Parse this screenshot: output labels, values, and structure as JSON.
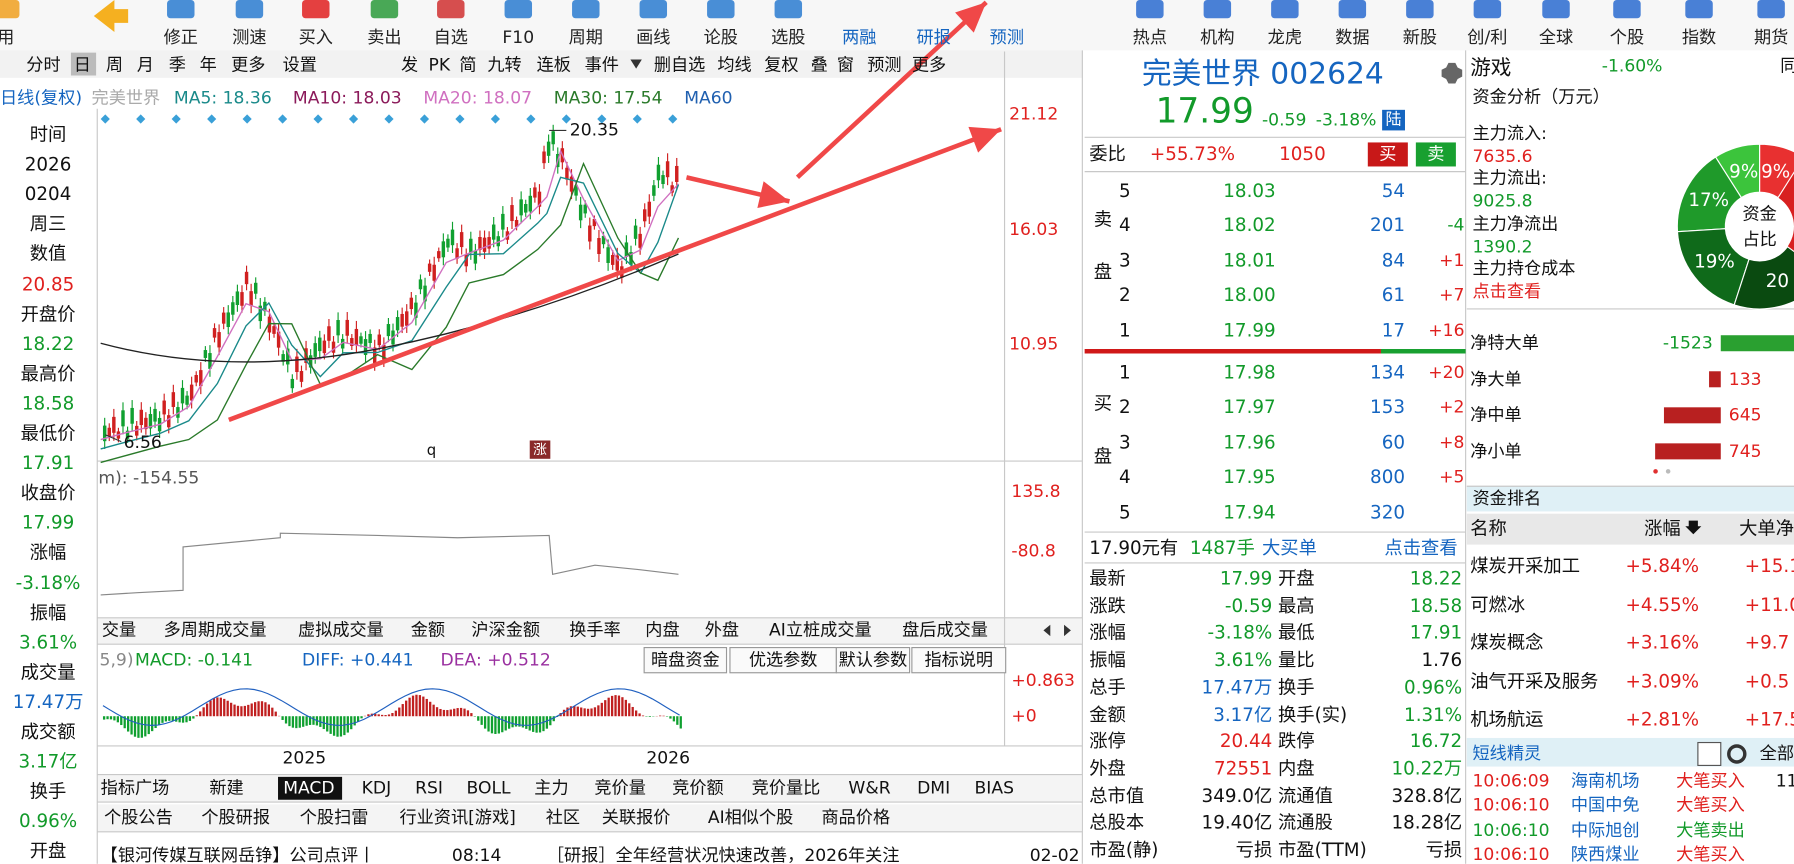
{
  "toolbar": [
    "用",
    "修正",
    "测速",
    "买入",
    "卖出",
    "自选",
    "F10",
    "周期",
    "画线",
    "论股",
    "选股",
    "两融",
    "研报",
    "预测",
    "热点",
    "机构",
    "龙虎",
    "数据",
    "新股",
    "创/利",
    "全球",
    "个股",
    "指数",
    "期货"
  ],
  "period_bar": [
    "分时",
    "日",
    "周",
    "月",
    "季",
    "年",
    "更多",
    "设置",
    "发",
    "PK",
    "简",
    "九转",
    "连板",
    "事件",
    "删自选",
    "均线",
    "复权",
    "叠",
    "窗",
    "预测",
    "更多"
  ],
  "ma_legend": [
    "日线(复权)",
    "完美世界",
    "MA5: 18.36",
    "MA10: 18.03",
    "MA20: 18.07",
    "MA30: 17.54",
    "MA60"
  ],
  "info_panel": [
    "时间",
    "2026",
    "0204",
    "周三",
    "数值",
    "20.85",
    "开盘价",
    "18.22",
    "最高价",
    "18.58",
    "最低价",
    "17.91",
    "收盘价",
    "17.99",
    "涨幅",
    "-3.18%",
    "振幅",
    "3.61%",
    "成交量",
    "17.47万",
    "成交额",
    "3.17亿",
    "换手",
    "0.96%",
    "开盘"
  ],
  "price_axis": [
    "21.12",
    "16.03",
    "10.95"
  ],
  "chart_labels": {
    "high": "20.35",
    "low": "6.56",
    "marker_q": "q",
    "marker_zhang": "涨"
  },
  "indicator": {
    "label": "m): -154.55",
    "axis": [
      "135.8",
      "-80.8"
    ]
  },
  "volume_tabs": [
    "交量",
    "多周期成交量",
    "虚拟成交量",
    "金额",
    "沪深金额",
    "换手率",
    "内盘",
    "外盘",
    "AI立桩成交量",
    "盘后成交量"
  ],
  "macd": {
    "params": "5,9)",
    "macd": "MACD: -0.141",
    "diff": "DIFF: +0.441",
    "dea": "DEA: +0.512",
    "buttons": [
      "暗盘资金",
      "优选参数",
      "默认参数",
      "指标说明"
    ],
    "axis": [
      "+0.863",
      "+0"
    ],
    "years": [
      "2025",
      "2026"
    ]
  },
  "indicator_tabs": [
    "指标广场",
    "新建",
    "MACD",
    "KDJ",
    "RSI",
    "BOLL",
    "主力",
    "竞价量",
    "竞价额",
    "竞价量比",
    "W&R",
    "DMI",
    "BIAS"
  ],
  "news_tabs": [
    "个股公告",
    "个股研报",
    "个股扫雷",
    "行业资讯[游戏]",
    "社区",
    "关联报价",
    "AI相似个股",
    "商品价格"
  ],
  "news": [
    {
      "title": "【银河传媒互联网岳铮】公司点评丨",
      "time": "08:14"
    },
    {
      "title": "［研报］全年经营状况快速改善，2026年关注",
      "time": "02-02"
    }
  ],
  "quote": {
    "name_code": "完美世界 002624",
    "price": "17.99",
    "change": "-0.59",
    "change_pct": "-3.18%",
    "badge": "陆",
    "wb_label": "委比",
    "wb_pct": "+55.73%",
    "wb_diff": "1050",
    "buy_btn": "买",
    "sell_btn": "卖",
    "sell_label": "卖盘",
    "buy_label": "买盘",
    "asks": [
      [
        "5",
        "18.03",
        "54"
      ],
      [
        "4",
        "18.02",
        "201",
        "-4"
      ],
      [
        "3",
        "18.01",
        "84",
        "+1"
      ],
      [
        "2",
        "18.00",
        "61",
        "+7"
      ],
      [
        "1",
        "17.99",
        "17",
        "+16"
      ]
    ],
    "bids": [
      [
        "1",
        "17.98",
        "134",
        "+20"
      ],
      [
        "2",
        "17.97",
        "153",
        "+2"
      ],
      [
        "3",
        "17.96",
        "60",
        "+8"
      ],
      [
        "4",
        "17.95",
        "800",
        "+5"
      ],
      [
        "5",
        "17.94",
        "320"
      ]
    ],
    "big_order": [
      "17.90元有",
      "1487手",
      "大买单",
      "点击查看"
    ],
    "stats": [
      [
        "最新",
        "17.99",
        "开盘",
        "18.22"
      ],
      [
        "涨跌",
        "-0.59",
        "最高",
        "18.58"
      ],
      [
        "涨幅",
        "-3.18%",
        "最低",
        "17.91"
      ],
      [
        "振幅",
        "3.61%",
        "量比",
        "1.76"
      ],
      [
        "总手",
        "17.47万",
        "换手",
        "0.96%"
      ],
      [
        "金额",
        "3.17亿",
        "换手(实)",
        "1.31%"
      ],
      [
        "涨停",
        "20.44",
        "跌停",
        "16.72"
      ],
      [
        "外盘",
        "72551",
        "内盘",
        "10.22万"
      ],
      [
        "总市值",
        "349.0亿",
        "流通值",
        "328.8亿"
      ],
      [
        "总股本",
        "19.40亿",
        "流通股",
        "18.28亿"
      ],
      [
        "市盈(静)",
        "亏损",
        "市盈(TTM)",
        "亏损"
      ]
    ]
  },
  "sector": {
    "name": "游戏",
    "change": "-1.60%",
    "peer": "同",
    "fund_title": "资金分析（万元）",
    "flows": [
      "主力流入:",
      "7635.6",
      "主力流出:",
      "9025.8",
      "主力净流出",
      "1390.2",
      "主力持仓成本",
      "点击查看"
    ],
    "pie": {
      "center": "资金占比",
      "values": [
        9,
        17,
        19,
        20,
        9
      ],
      "value_labels": [
        "9%",
        "17%",
        "19%",
        "20",
        "9%"
      ]
    },
    "net": {
      "labels": [
        "净特大单",
        "净大单",
        "净中单",
        "净小单"
      ],
      "values": [
        -1523,
        133,
        645,
        745
      ]
    },
    "rank_title": "资金排名",
    "rank_header": [
      "名称",
      "涨幅",
      "大单净"
    ],
    "rank": [
      [
        "煤炭开采加工",
        "+5.84%",
        "+15.1"
      ],
      [
        "可燃冰",
        "+4.55%",
        "+11.0"
      ],
      [
        "煤炭概念",
        "+3.16%",
        "+9.7"
      ],
      [
        "油气开采及服务",
        "+3.09%",
        "+0.5"
      ],
      [
        "机场航运",
        "+2.81%",
        "+17.5"
      ]
    ],
    "spirit_title": "短线精灵",
    "spirit_all": "全部",
    "spirit": [
      [
        "10:06:09",
        "海南机场",
        "大笔买入",
        "11"
      ],
      [
        "10:06:10",
        "中国中免",
        "大笔买入"
      ],
      [
        "10:06:10",
        "中际旭创",
        "大笔卖出"
      ],
      [
        "10:06:10",
        "陕西煤业",
        "大笔买入"
      ]
    ]
  }
}
